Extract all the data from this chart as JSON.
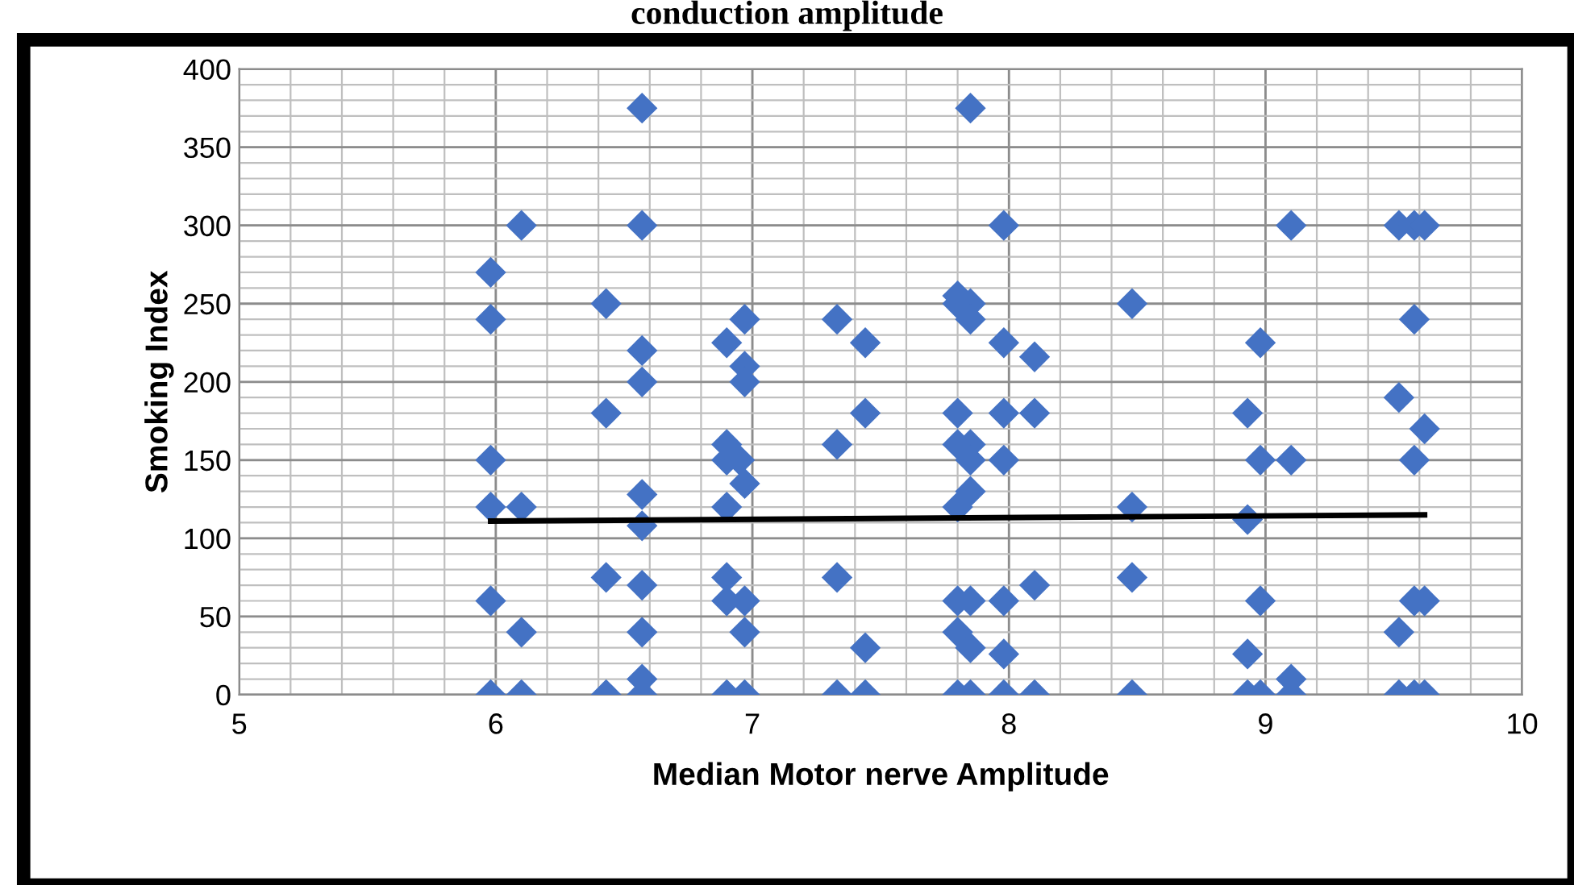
{
  "chart_data": {
    "type": "scatter",
    "title": "conduction amplitude",
    "xlabel": "Median Motor nerve Amplitude",
    "ylabel": "Smoking Index",
    "xlim": [
      5,
      10
    ],
    "xticks": [
      5,
      6,
      7,
      8,
      9,
      10
    ],
    "ylim": [
      0,
      400
    ],
    "yticks": [
      0,
      50,
      100,
      150,
      200,
      250,
      300,
      350,
      400
    ],
    "grid": true,
    "marker": "diamond",
    "series": [
      {
        "color": "#4472c4",
        "x": [
          5.98,
          5.98,
          5.98,
          5.98,
          5.98,
          5.98,
          6.1,
          6.1,
          6.1,
          6.1,
          6.43,
          6.43,
          6.43,
          6.43,
          6.57,
          6.57,
          6.57,
          6.57,
          6.57,
          6.57,
          6.57,
          6.57,
          6.57,
          6.57,
          6.9,
          6.9,
          6.9,
          6.9,
          6.9,
          6.9,
          6.9,
          6.95,
          6.97,
          6.97,
          6.97,
          6.97,
          6.97,
          6.97,
          6.97,
          7.33,
          7.33,
          7.33,
          7.33,
          7.44,
          7.44,
          7.44,
          7.44,
          7.8,
          7.8,
          7.8,
          7.8,
          7.8,
          7.8,
          7.8,
          7.8,
          7.85,
          7.85,
          7.85,
          7.85,
          7.85,
          7.85,
          7.85,
          7.85,
          7.85,
          7.98,
          7.98,
          7.98,
          7.98,
          7.98,
          7.98,
          7.98,
          8.1,
          8.1,
          8.1,
          8.1,
          8.48,
          8.48,
          8.48,
          8.48,
          8.93,
          8.93,
          8.93,
          8.93,
          8.98,
          8.98,
          8.98,
          8.98,
          9.1,
          9.1,
          9.1,
          9.1,
          9.52,
          9.52,
          9.52,
          9.52,
          9.58,
          9.58,
          9.58,
          9.58,
          9.58,
          9.62,
          9.62,
          9.62,
          9.62
        ],
        "values": [
          270,
          240,
          150,
          120,
          60,
          0,
          300,
          120,
          40,
          0,
          250,
          180,
          75,
          0,
          375,
          300,
          220,
          200,
          128,
          108,
          70,
          40,
          10,
          0,
          225,
          160,
          150,
          120,
          75,
          60,
          0,
          150,
          240,
          210,
          200,
          135,
          60,
          40,
          0,
          240,
          160,
          75,
          0,
          225,
          180,
          30,
          0,
          255,
          250,
          180,
          160,
          120,
          60,
          40,
          0,
          375,
          250,
          240,
          160,
          150,
          130,
          60,
          30,
          0,
          300,
          225,
          180,
          150,
          60,
          26,
          0,
          216,
          180,
          70,
          0,
          250,
          120,
          75,
          0,
          180,
          112,
          26,
          0,
          225,
          150,
          60,
          0,
          300,
          150,
          10,
          0,
          300,
          190,
          40,
          0,
          300,
          240,
          150,
          60,
          0,
          300,
          170,
          60,
          0
        ]
      },
      {
        "type": "line",
        "color": "#000000",
        "marker": "none",
        "x": [
          5.98,
          9.62
        ],
        "values": [
          111,
          115
        ]
      }
    ]
  }
}
